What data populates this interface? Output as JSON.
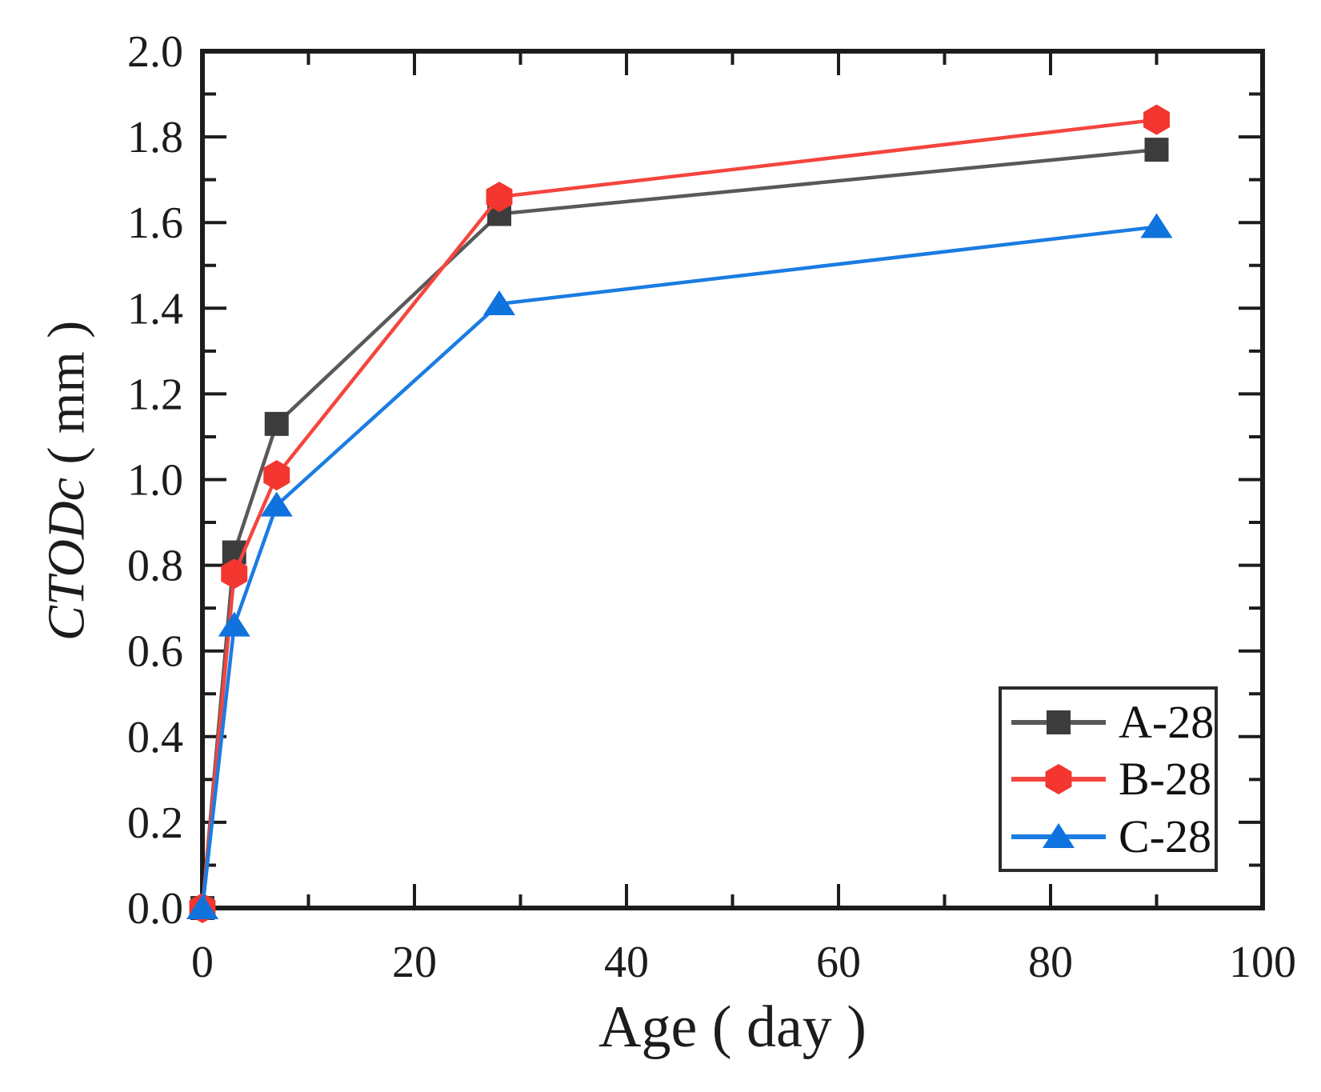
{
  "labels": {
    "xlabel": "Age ( day )",
    "ylabel_symbol": "CTODc",
    "ylabel_unit": " ( mm )"
  },
  "chart_data": {
    "type": "line",
    "title": "",
    "xlabel": "Age ( day )",
    "ylabel": "CTODc ( mm )",
    "x": [
      0,
      3,
      7,
      28,
      90
    ],
    "series": [
      {
        "name": "A-28",
        "color": "#4a4a4a",
        "line_color": "#595959",
        "marker_color": "#3c3c3c",
        "marker": "square",
        "values": [
          0,
          0.83,
          1.13,
          1.62,
          1.77
        ]
      },
      {
        "name": "B-28",
        "color": "#f4413a",
        "line_color": "#f4453e",
        "marker_color": "#f3362f",
        "marker": "hexagon",
        "values": [
          0,
          0.78,
          1.01,
          1.66,
          1.84
        ]
      },
      {
        "name": "C-28",
        "color": "#1477e0",
        "line_color": "#1b7ce2",
        "marker_color": "#0f72dd",
        "marker": "triangle",
        "values": [
          0,
          0.66,
          0.94,
          1.41,
          1.59
        ]
      }
    ],
    "xlim": [
      0,
      100
    ],
    "ylim": [
      0.0,
      2.0
    ],
    "x_major_ticks": [
      0,
      20,
      40,
      60,
      80,
      100
    ],
    "x_minor_step": 10,
    "y_major_step": 0.2,
    "y_minor_step": 0.1,
    "y_tick_decimals": 1,
    "grid": false,
    "frame": true,
    "tick_direction": "in",
    "legend_position": "lower right",
    "legend": [
      "A-28",
      "B-28",
      "C-28"
    ],
    "axis_color": "#1c1c1c"
  }
}
